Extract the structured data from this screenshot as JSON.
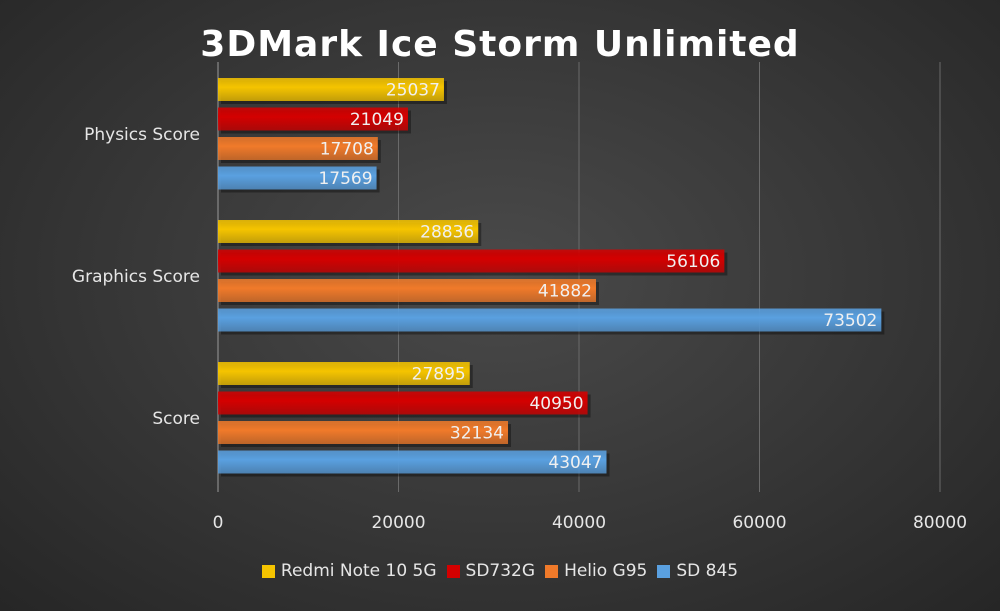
{
  "chart_data": {
    "type": "bar",
    "orientation": "horizontal",
    "title": "3DMark Ice Storm Unlimited",
    "categories": [
      "Physics Score",
      "Graphics Score",
      "Score"
    ],
    "series": [
      {
        "name": "Redmi Note 10 5G",
        "color": "#f5c400",
        "values": [
          25037,
          28836,
          27895
        ]
      },
      {
        "name": "SD732G",
        "color": "#d40000",
        "values": [
          21049,
          56106,
          40950
        ]
      },
      {
        "name": "Helio G95",
        "color": "#f07a2a",
        "values": [
          17708,
          41882,
          32134
        ]
      },
      {
        "name": "SD 845",
        "color": "#5aa0e0",
        "values": [
          17569,
          73502,
          43047
        ]
      }
    ],
    "xlim": [
      0,
      80000
    ],
    "xticks": [
      "0",
      "20000",
      "40000",
      "60000",
      "80000"
    ],
    "grid": true,
    "legend": "bottom",
    "data_labels": true
  }
}
